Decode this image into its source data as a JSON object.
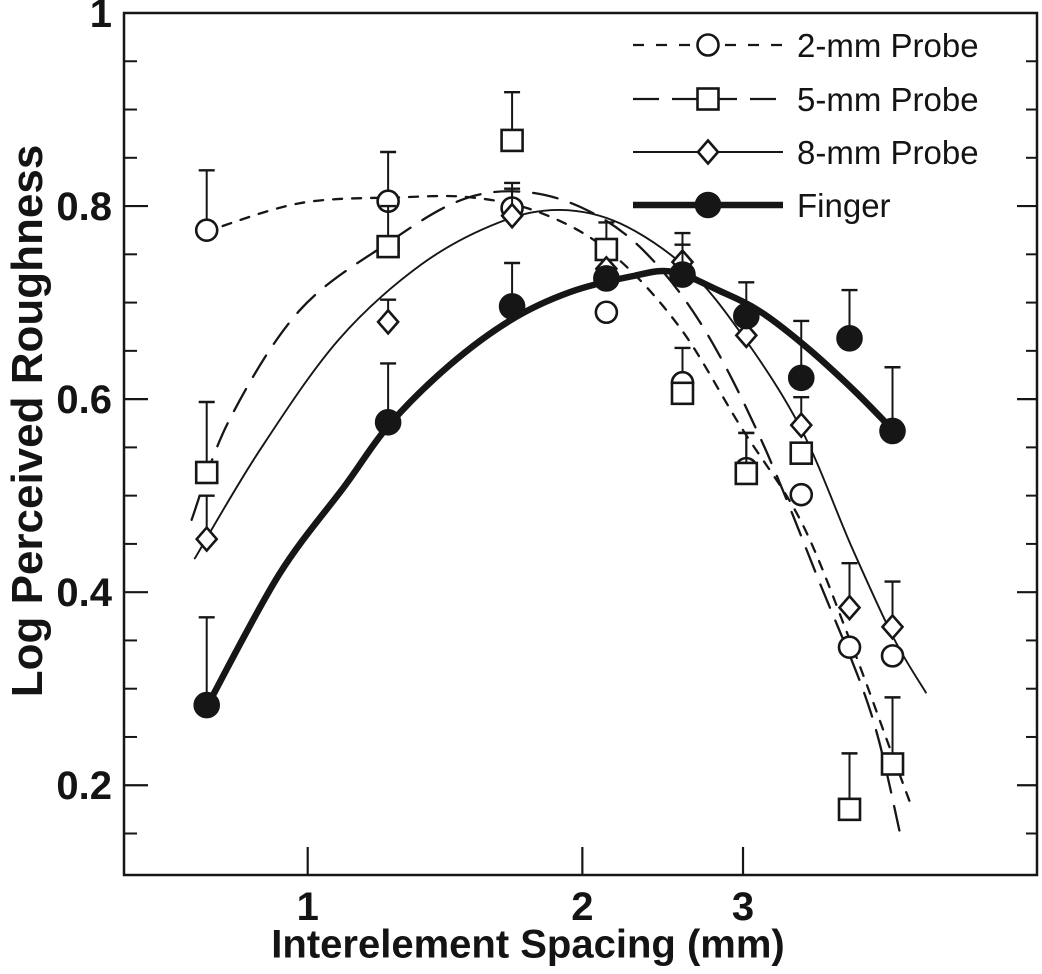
{
  "figure": {
    "background": "#ffffff",
    "ink": "#161616"
  },
  "chart_data": {
    "type": "scatter",
    "title": "",
    "xlabel": "Interelement Spacing (mm)",
    "ylabel": "Log Perceived Roughness",
    "x_scale": "log10",
    "xlim": [
      0.629,
      6.3
    ],
    "ylim": [
      0.107,
      1.0
    ],
    "grid": "off",
    "legend_position": "top-right-inside",
    "x_ticks": [
      {
        "value": 1,
        "label": "1"
      },
      {
        "value": 2,
        "label": "2"
      },
      {
        "value": 3,
        "label": "3"
      }
    ],
    "y_major_ticks": [
      {
        "value": 0.2,
        "label": "0.2"
      },
      {
        "value": 0.4,
        "label": "0.4"
      },
      {
        "value": 0.6,
        "label": "0.6"
      },
      {
        "value": 0.8,
        "label": "0.8"
      },
      {
        "value": 1,
        "label": "1"
      }
    ],
    "y_minor_tick_step": 0.05,
    "x": [
      0.775,
      1.225,
      1.675,
      2.125,
      2.575,
      3.025,
      3.475,
      3.925,
      4.375
    ],
    "series": [
      {
        "name": "2-mm Probe",
        "marker": "open-circle",
        "line_style": "short-dash",
        "y": [
          0.775,
          0.805,
          0.798,
          0.69,
          0.617,
          0.528,
          0.501,
          0.343,
          0.334
        ],
        "err_up": [
          0.062,
          0.051,
          0.026,
          0,
          0.036,
          0.037,
          0,
          0,
          0
        ],
        "fit_curve": [
          [
            0.771,
            0.773
          ],
          [
            0.98,
            0.803
          ],
          [
            1.26,
            0.809
          ],
          [
            1.51,
            0.809
          ],
          [
            1.8,
            0.793
          ],
          [
            2.14,
            0.753
          ],
          [
            2.55,
            0.676
          ],
          [
            2.98,
            0.572
          ],
          [
            3.47,
            0.474
          ],
          [
            3.93,
            0.35
          ],
          [
            4.34,
            0.24
          ],
          [
            4.59,
            0.178
          ]
        ]
      },
      {
        "name": "5-mm Probe",
        "marker": "open-square",
        "line_style": "long-dash",
        "y": [
          0.524,
          0.758,
          0.868,
          0.755,
          0.606,
          0.523,
          0.544,
          0.175,
          0.222
        ],
        "err_up": [
          0.073,
          0.042,
          0.05,
          0.028,
          0,
          0.042,
          0,
          0.058,
          0.069
        ],
        "fit_curve": [
          [
            0.746,
            0.475
          ],
          [
            0.82,
            0.578
          ],
          [
            0.98,
            0.692
          ],
          [
            1.23,
            0.763
          ],
          [
            1.47,
            0.806
          ],
          [
            1.71,
            0.815
          ],
          [
            1.99,
            0.799
          ],
          [
            2.31,
            0.758
          ],
          [
            2.69,
            0.68
          ],
          [
            3.13,
            0.561
          ],
          [
            3.64,
            0.41
          ],
          [
            4.14,
            0.276
          ],
          [
            4.46,
            0.15
          ]
        ]
      },
      {
        "name": "8-mm Probe",
        "marker": "open-diamond",
        "line_style": "solid-thin",
        "y": [
          0.455,
          0.68,
          0.79,
          0.735,
          0.742,
          0.666,
          0.573,
          0.384,
          0.364
        ],
        "err_up": [
          0.045,
          0.023,
          0.028,
          0,
          0.03,
          0,
          0.029,
          0.046,
          0.047
        ],
        "fit_curve": [
          [
            0.752,
            0.435
          ],
          [
            0.886,
            0.547
          ],
          [
            1.08,
            0.661
          ],
          [
            1.33,
            0.739
          ],
          [
            1.62,
            0.783
          ],
          [
            1.89,
            0.796
          ],
          [
            2.2,
            0.782
          ],
          [
            2.6,
            0.736
          ],
          [
            2.98,
            0.669
          ],
          [
            3.47,
            0.57
          ],
          [
            3.95,
            0.446
          ],
          [
            4.39,
            0.352
          ],
          [
            4.76,
            0.296
          ]
        ]
      },
      {
        "name": "Finger",
        "marker": "filled-circle",
        "line_style": "solid-thick",
        "y": [
          0.283,
          0.576,
          0.696,
          0.725,
          0.729,
          0.686,
          0.622,
          0.663,
          0.567
        ],
        "err_up": [
          0.091,
          0.061,
          0.045,
          0,
          0.031,
          0.035,
          0.059,
          0.05,
          0.066
        ],
        "fit_curve": [
          [
            0.777,
            0.283
          ],
          [
            0.93,
            0.418
          ],
          [
            1.1,
            0.511
          ],
          [
            1.23,
            0.574
          ],
          [
            1.43,
            0.635
          ],
          [
            1.67,
            0.682
          ],
          [
            1.94,
            0.711
          ],
          [
            2.26,
            0.727
          ],
          [
            2.51,
            0.732
          ],
          [
            2.83,
            0.712
          ],
          [
            3.13,
            0.691
          ],
          [
            3.5,
            0.656
          ],
          [
            3.95,
            0.611
          ],
          [
            4.39,
            0.567
          ]
        ]
      }
    ]
  }
}
